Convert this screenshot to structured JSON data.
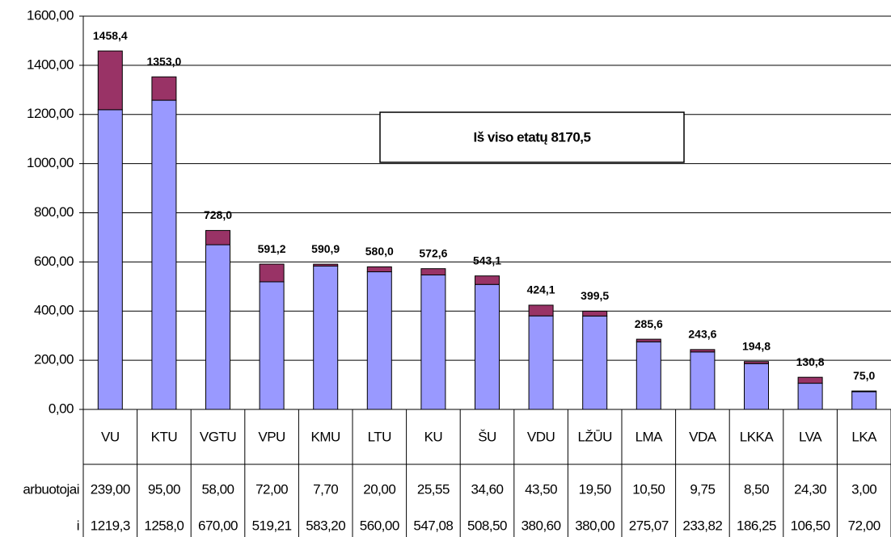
{
  "chart_data": {
    "type": "stacked_bar",
    "categories": [
      "VU",
      "KTU",
      "VGTU",
      "VPU",
      "KMU",
      "LTU",
      "KU",
      "ŠU",
      "VDU",
      "LŽŪU",
      "LMA",
      "VDA",
      "LKKA",
      "LVA",
      "LKA"
    ],
    "series": [
      {
        "name": "i",
        "color": "#9999ff",
        "values": [
          1219.35,
          1258.0,
          670.0,
          519.21,
          583.2,
          560.0,
          547.08,
          508.5,
          380.6,
          380.0,
          275.07,
          233.82,
          186.25,
          106.5,
          72.0
        ],
        "value_labels": [
          "1219,3",
          "1258,0",
          "670,00",
          "519,21",
          "583,20",
          "560,00",
          "547,08",
          "508,50",
          "380,60",
          "380,00",
          "275,07",
          "233,82",
          "186,25",
          "106,50",
          "72,00"
        ]
      },
      {
        "name": "arbuotojai",
        "color": "#993366",
        "values": [
          239.0,
          95.0,
          58.0,
          72.0,
          7.7,
          20.0,
          25.55,
          34.6,
          43.5,
          19.5,
          10.5,
          9.75,
          8.5,
          24.3,
          3.0
        ],
        "value_labels": [
          "239,00",
          "95,00",
          "58,00",
          "72,00",
          "7,70",
          "20,00",
          "25,55",
          "34,60",
          "43,50",
          "19,50",
          "10,50",
          "9,75",
          "8,50",
          "24,30",
          "3,00"
        ]
      }
    ],
    "total_labels": [
      "1458,4",
      "1353,0",
      "728,0",
      "591,2",
      "590,9",
      "580,0",
      "572,6",
      "543,1",
      "424,1",
      "399,5",
      "285,6",
      "243,6",
      "194,8",
      "130,8",
      "75,0"
    ],
    "annotation": "Iš viso etatų 8170,5",
    "ylim": [
      0,
      1600
    ],
    "yticks": [
      {
        "value": 0,
        "label": "0,00"
      },
      {
        "value": 200,
        "label": "200,00"
      },
      {
        "value": 400,
        "label": "400,00"
      },
      {
        "value": 600,
        "label": "600,00"
      },
      {
        "value": 800,
        "label": "800,00"
      },
      {
        "value": 1000,
        "label": "1000,00"
      },
      {
        "value": 1200,
        "label": "1200,00"
      },
      {
        "value": 1400,
        "label": "1400,00"
      },
      {
        "value": 1600,
        "label": "1600,00"
      }
    ]
  }
}
